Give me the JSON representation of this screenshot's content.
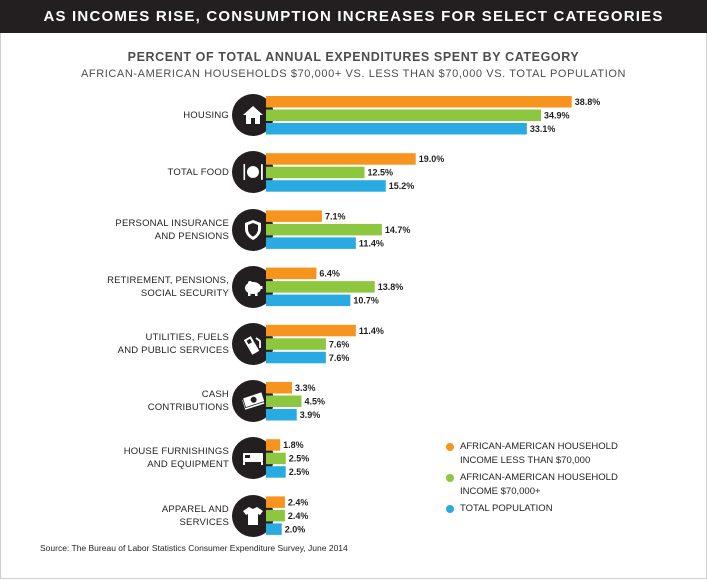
{
  "header": {
    "banner": "AS INCOMES RISE, CONSUMPTION INCREASES FOR SELECT CATEGORIES"
  },
  "colors": {
    "orange": "#f7941d",
    "green": "#8dc63f",
    "blue": "#29abe2",
    "dark": "#231f20"
  },
  "chart_data": {
    "type": "bar",
    "orientation": "horizontal",
    "title": "PERCENT OF TOTAL ANNUAL EXPENDITURES SPENT BY CATEGORY",
    "subtitle": "AFRICAN-AMERICAN HOUSEHOLDS $70,000+ VS. LESS THAN $70,000 VS. TOTAL POPULATION",
    "unit": "%",
    "legend_position": "bottom-right",
    "grid": false,
    "categories": [
      {
        "lines": [
          "HOUSING"
        ],
        "icon": "house-icon"
      },
      {
        "lines": [
          "TOTAL FOOD"
        ],
        "icon": "plate-fork-knife-icon"
      },
      {
        "lines": [
          "PERSONAL INSURANCE",
          "AND PENSIONS"
        ],
        "icon": "shield-icon"
      },
      {
        "lines": [
          "RETIREMENT, PENSIONS,",
          "SOCIAL SECURITY"
        ],
        "icon": "piggy-bank-icon"
      },
      {
        "lines": [
          "UTILITIES, FUELS",
          "AND PUBLIC SERVICES"
        ],
        "icon": "gas-pump-icon"
      },
      {
        "lines": [
          "CASH",
          "CONTRIBUTIONS"
        ],
        "icon": "cash-icon"
      },
      {
        "lines": [
          "HOUSE FURNISHINGS",
          "AND EQUIPMENT"
        ],
        "icon": "bed-icon"
      },
      {
        "lines": [
          "APPAREL AND",
          "SERVICES"
        ],
        "icon": "shirt-icon"
      }
    ],
    "series": [
      {
        "name": "AFRICAN-AMERICAN HOUSEHOLD INCOME LESS THAN $70,000",
        "color": "#f7941d",
        "values": [
          38.8,
          19.0,
          7.1,
          6.4,
          11.4,
          3.3,
          1.8,
          2.4
        ],
        "labels": [
          "38.8%",
          "19.0%",
          "7.1%",
          "6.4%",
          "11.4%",
          "3.3%",
          "1.8%",
          "2.4%"
        ]
      },
      {
        "name": "AFRICAN-AMERICAN HOUSEHOLD INCOME $70,000+",
        "color": "#8dc63f",
        "values": [
          34.9,
          12.5,
          14.7,
          13.8,
          7.6,
          4.5,
          2.5,
          2.4
        ],
        "labels": [
          "34.9%",
          "12.5%",
          "14.7%",
          "13.8%",
          "7.6%",
          "4.5%",
          "2.5%",
          "2.4%"
        ]
      },
      {
        "name": "TOTAL POPULATION",
        "color": "#29abe2",
        "values": [
          33.1,
          15.2,
          11.4,
          10.7,
          7.6,
          3.9,
          2.5,
          2.0
        ],
        "labels": [
          "33.1%",
          "15.2%",
          "11.4%",
          "10.7%",
          "7.6%",
          "3.9%",
          "2.5%",
          "2.0%"
        ]
      }
    ],
    "legend_lines": [
      [
        "AFRICAN-AMERICAN HOUSEHOLD",
        "INCOME LESS THAN $70,000"
      ],
      [
        "AFRICAN-AMERICAN HOUSEHOLD",
        "INCOME $70,000+"
      ],
      [
        "TOTAL POPULATION"
      ]
    ]
  },
  "footer": {
    "source": "Source: The Bureau of Labor Statistics Consumer Expenditure Survey, June 2014"
  }
}
